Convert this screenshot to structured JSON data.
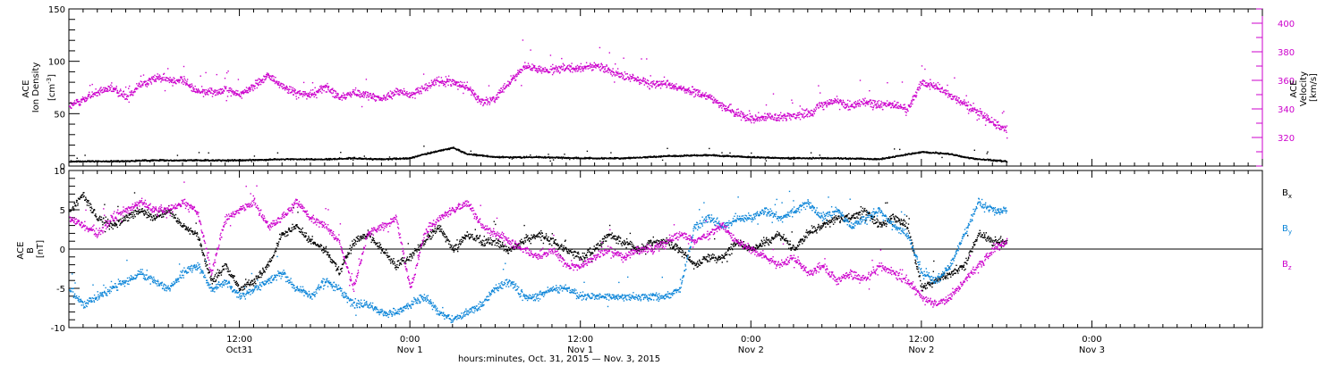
{
  "colors": {
    "density": "#000000",
    "velocity": "#cc00cc",
    "bx": "#000000",
    "by": "#0a84d8",
    "bz": "#cc00cc"
  },
  "x_axis": {
    "title": "hours:minutes, Oct. 31, 2015 — Nov.  3, 2015",
    "range_hours": [
      0,
      84
    ],
    "ticks": [
      {
        "hour": 0,
        "time": "",
        "date": ""
      },
      {
        "hour": 12,
        "time": "12:00",
        "date": "Oct31"
      },
      {
        "hour": 24,
        "time": "0:00",
        "date": "Nov 1"
      },
      {
        "hour": 36,
        "time": "12:00",
        "date": "Nov 1"
      },
      {
        "hour": 48,
        "time": "0:00",
        "date": "Nov 2"
      },
      {
        "hour": 60,
        "time": "12:00",
        "date": "Nov 2"
      },
      {
        "hour": 72,
        "time": "0:00",
        "date": "Nov 3"
      }
    ],
    "data_end_hour": 66
  },
  "chart_data": [
    {
      "type": "scatter",
      "panel": "top",
      "left_axis": {
        "label_lines": [
          "ACE",
          "Ion Density"
        ],
        "unit_base": "[cm",
        "unit_sup": "-3",
        "unit_end": "]",
        "range": [
          0,
          150
        ],
        "ticks": [
          0,
          50,
          100,
          150
        ]
      },
      "right_axis": {
        "label_lines": [
          "ACE",
          "Velocity",
          "[km/s]"
        ],
        "range": [
          300,
          410
        ],
        "ticks": [
          320,
          340,
          360,
          380,
          400
        ]
      },
      "series": [
        {
          "key": "velocity",
          "axis": "right",
          "x": [
            0,
            1,
            2,
            3,
            4,
            5,
            6,
            7,
            8,
            9,
            10,
            11,
            12,
            13,
            14,
            15,
            16,
            17,
            18,
            19,
            20,
            21,
            22,
            23,
            24,
            25,
            26,
            27,
            28,
            29,
            30,
            31,
            32,
            33,
            34,
            35,
            36,
            37,
            38,
            39,
            40,
            41,
            42,
            43,
            44,
            45,
            46,
            47,
            48,
            49,
            50,
            51,
            52,
            53,
            54,
            55,
            56,
            57,
            58,
            59,
            60,
            61,
            62,
            63,
            64,
            65,
            66
          ],
          "y": [
            342,
            347,
            352,
            355,
            349,
            357,
            362,
            361,
            360,
            353,
            352,
            354,
            350,
            357,
            364,
            356,
            351,
            350,
            356,
            348,
            352,
            350,
            347,
            353,
            350,
            356,
            360,
            359,
            356,
            345,
            348,
            359,
            370,
            368,
            367,
            369,
            369,
            370,
            368,
            363,
            361,
            358,
            357,
            355,
            352,
            349,
            342,
            337,
            334,
            335,
            334,
            336,
            337,
            344,
            346,
            342,
            345,
            343,
            343,
            340,
            359,
            356,
            350,
            344,
            338,
            331,
            325
          ]
        },
        {
          "key": "density",
          "axis": "left",
          "x": [
            0,
            3,
            6,
            9,
            12,
            15,
            18,
            20,
            22,
            24,
            25,
            26,
            27,
            28,
            30,
            33,
            36,
            39,
            42,
            45,
            48,
            51,
            54,
            57,
            60,
            61,
            62,
            63,
            64,
            65,
            66
          ],
          "y": [
            5,
            5,
            6,
            6,
            6,
            7,
            7,
            8,
            7,
            8,
            12,
            15,
            18,
            12,
            9,
            9,
            8,
            8,
            10,
            11,
            9,
            8,
            8,
            7,
            14,
            13,
            12,
            9,
            7,
            6,
            5
          ]
        }
      ]
    },
    {
      "type": "scatter",
      "panel": "bottom",
      "left_axis": {
        "label_lines": [
          "ACE",
          "B"
        ],
        "unit_base": "[nT]",
        "range": [
          -10,
          10
        ],
        "ticks": [
          -10,
          -5,
          0,
          5,
          10
        ]
      },
      "legend": [
        {
          "key": "bx",
          "base": "B",
          "sub": "x"
        },
        {
          "key": "by",
          "base": "B",
          "sub": "y"
        },
        {
          "key": "bz",
          "base": "B",
          "sub": "z"
        }
      ],
      "series": [
        {
          "key": "bx",
          "x": [
            0,
            1,
            2,
            3,
            4,
            5,
            6,
            7,
            8,
            9,
            10,
            11,
            12,
            13,
            14,
            15,
            16,
            17,
            18,
            19,
            20,
            21,
            22,
            23,
            24,
            25,
            26,
            27,
            28,
            29,
            30,
            31,
            32,
            33,
            34,
            35,
            36,
            37,
            38,
            39,
            40,
            41,
            42,
            43,
            44,
            45,
            46,
            47,
            48,
            49,
            50,
            51,
            52,
            53,
            54,
            55,
            56,
            57,
            58,
            59,
            60,
            61,
            62,
            63,
            64,
            65,
            66
          ],
          "y": [
            5,
            7,
            4,
            3,
            4,
            5,
            4,
            5,
            3,
            2,
            -4,
            -2,
            -5,
            -4,
            -2,
            2,
            3,
            1,
            0,
            -3,
            1,
            2,
            0,
            -2,
            -1,
            1,
            3,
            0,
            2,
            1,
            1,
            0,
            1,
            2,
            1,
            0,
            -1,
            0,
            2,
            1,
            0,
            1,
            1,
            0,
            -2,
            -1,
            -1,
            1,
            0,
            1,
            2,
            0,
            2,
            3,
            4,
            4,
            5,
            3,
            4,
            3,
            -5,
            -4,
            -3,
            -2,
            2,
            1,
            1
          ]
        },
        {
          "key": "by",
          "x": [
            0,
            1,
            2,
            3,
            4,
            5,
            6,
            7,
            8,
            9,
            10,
            11,
            12,
            13,
            14,
            15,
            16,
            17,
            18,
            19,
            20,
            21,
            22,
            23,
            24,
            25,
            26,
            27,
            28,
            29,
            30,
            31,
            32,
            33,
            34,
            35,
            36,
            37,
            38,
            39,
            40,
            41,
            42,
            43,
            44,
            45,
            46,
            47,
            48,
            49,
            50,
            51,
            52,
            53,
            54,
            55,
            56,
            57,
            58,
            59,
            60,
            61,
            62,
            63,
            64,
            65,
            66
          ],
          "y": [
            -5,
            -7,
            -6,
            -5,
            -4,
            -3,
            -4,
            -5,
            -3,
            -2,
            -5,
            -4,
            -6,
            -5,
            -4,
            -3,
            -5,
            -6,
            -4,
            -5,
            -7,
            -7,
            -8,
            -8,
            -7,
            -6,
            -8,
            -9,
            -8,
            -7,
            -5,
            -4,
            -6,
            -6,
            -5,
            -5,
            -6,
            -6,
            -6,
            -6,
            -6,
            -6,
            -6,
            -5,
            3,
            4,
            3,
            4,
            4,
            5,
            4,
            5,
            6,
            4,
            5,
            3,
            4,
            5,
            3,
            2,
            -3,
            -4,
            -2,
            2,
            6,
            5,
            5
          ]
        },
        {
          "key": "bz",
          "x": [
            0,
            1,
            2,
            3,
            4,
            5,
            6,
            7,
            8,
            9,
            10,
            11,
            12,
            13,
            14,
            15,
            16,
            17,
            18,
            19,
            20,
            21,
            22,
            23,
            24,
            25,
            26,
            27,
            28,
            29,
            30,
            31,
            32,
            33,
            34,
            35,
            36,
            37,
            38,
            39,
            40,
            41,
            42,
            43,
            44,
            45,
            46,
            47,
            48,
            49,
            50,
            51,
            52,
            53,
            54,
            55,
            56,
            57,
            58,
            59,
            60,
            61,
            62,
            63,
            64,
            65,
            66
          ],
          "y": [
            4,
            3,
            2,
            4,
            5,
            6,
            5,
            5,
            6,
            5,
            -3,
            4,
            5,
            6,
            3,
            4,
            6,
            4,
            3,
            1,
            -5,
            2,
            3,
            4,
            -5,
            2,
            4,
            5,
            6,
            3,
            2,
            1,
            0,
            -1,
            0,
            -2,
            -2,
            -1,
            0,
            -1,
            0,
            0,
            1,
            2,
            1,
            2,
            3,
            1,
            0,
            -1,
            -2,
            -1,
            -3,
            -2,
            -4,
            -3,
            -4,
            -2,
            -3,
            -4,
            -6,
            -7,
            -6,
            -4,
            -2,
            0,
            1
          ]
        }
      ]
    }
  ]
}
